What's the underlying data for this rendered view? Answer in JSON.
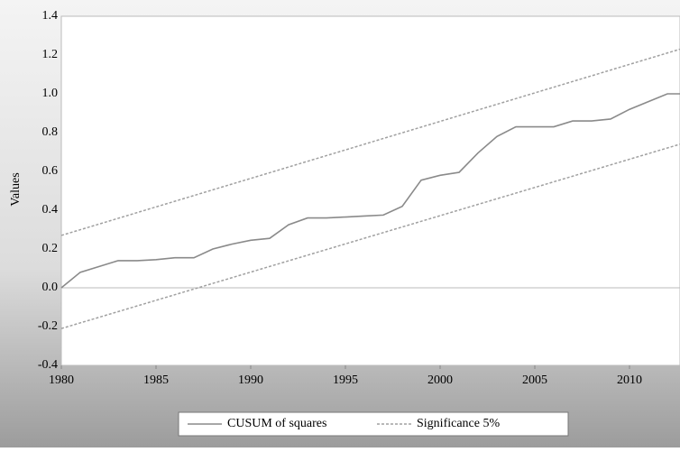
{
  "chart_data": {
    "type": "line",
    "y_label": "Values",
    "xlim": [
      1980,
      2013
    ],
    "xticks": [
      1980,
      1985,
      1990,
      1995,
      2000,
      2005,
      2010
    ],
    "ylim": [
      -0.4,
      1.4
    ],
    "yticks": [
      -0.4,
      -0.2,
      {
        "value": 0,
        "label": "0.0"
      },
      0.2,
      0.4,
      0.6,
      0.8,
      {
        "value": 1,
        "label": "1.0"
      },
      1.2,
      1.4
    ],
    "series": [
      {
        "name": "CUSUM of squares",
        "color": "#8a8a8a",
        "dash": false,
        "x": [
          1980,
          1981,
          1982,
          1983,
          1984,
          1985,
          1986,
          1987,
          1988,
          1989,
          1990,
          1991,
          1992,
          1993,
          1994,
          1995,
          1996,
          1997,
          1998,
          1999,
          2000,
          2001,
          2002,
          2003,
          2004,
          2005,
          2006,
          2007,
          2008,
          2009,
          2010,
          2011,
          2012,
          2013
        ],
        "values": [
          0.0,
          0.08,
          0.11,
          0.14,
          0.14,
          0.145,
          0.155,
          0.155,
          0.2,
          0.225,
          0.245,
          0.255,
          0.325,
          0.36,
          0.36,
          0.365,
          0.37,
          0.375,
          0.42,
          0.555,
          0.58,
          0.595,
          0.695,
          0.78,
          0.83,
          0.83,
          0.83,
          0.86,
          0.86,
          0.87,
          0.92,
          0.96,
          1.0,
          1.0
        ]
      },
      {
        "name": "Significance 5%",
        "color": "#a0a0a0",
        "dash": true,
        "x": [
          1980,
          2013
        ],
        "values": [
          0.27,
          1.24
        ],
        "lower": [
          -0.21,
          0.75
        ]
      }
    ]
  }
}
